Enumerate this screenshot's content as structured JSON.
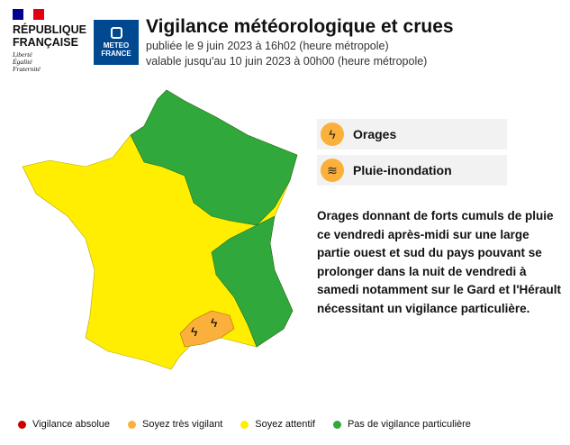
{
  "header": {
    "republique_line1": "RÉPUBLIQUE",
    "republique_line2": "FRANÇAISE",
    "motto": [
      "Liberté",
      "Égalité",
      "Fraternité"
    ],
    "meteo_line1": "METEO",
    "meteo_line2": "FRANCE",
    "title": "Vigilance météorologique et crues",
    "published": "publiée le 9 juin 2023 à 16h02 (heure métropole)",
    "valid": "valable jusqu'au 10 juin 2023 à 00h00 (heure métropole)"
  },
  "risks": [
    {
      "label": "Orages",
      "icon": "lightning-icon",
      "color": "#fbb03b"
    },
    {
      "label": "Pluie-inondation",
      "icon": "rain-flood-icon",
      "color": "#fbb03b"
    }
  ],
  "description": "Orages donnant de forts cumuls de pluie ce vendredi après-midi sur une large partie ouest et sud du pays pouvant se prolonger dans la nuit de vendredi à samedi notamment sur le Gard et l'Hérault nécessitant un vigilance particulière.",
  "legend": [
    {
      "label": "Vigilance absolue",
      "color": "#cc0000"
    },
    {
      "label": "Soyez très vigilant",
      "color": "#fbb03b"
    },
    {
      "label": "Soyez attentif",
      "color": "#ffee00"
    },
    {
      "label": "Pas de vigilance particulière",
      "color": "#31a83b"
    }
  ],
  "map": {
    "colors": {
      "yellow": "#ffee00",
      "green": "#31a83b",
      "orange": "#fbb03b"
    },
    "orange_zones": [
      "Gard",
      "Hérault"
    ]
  }
}
